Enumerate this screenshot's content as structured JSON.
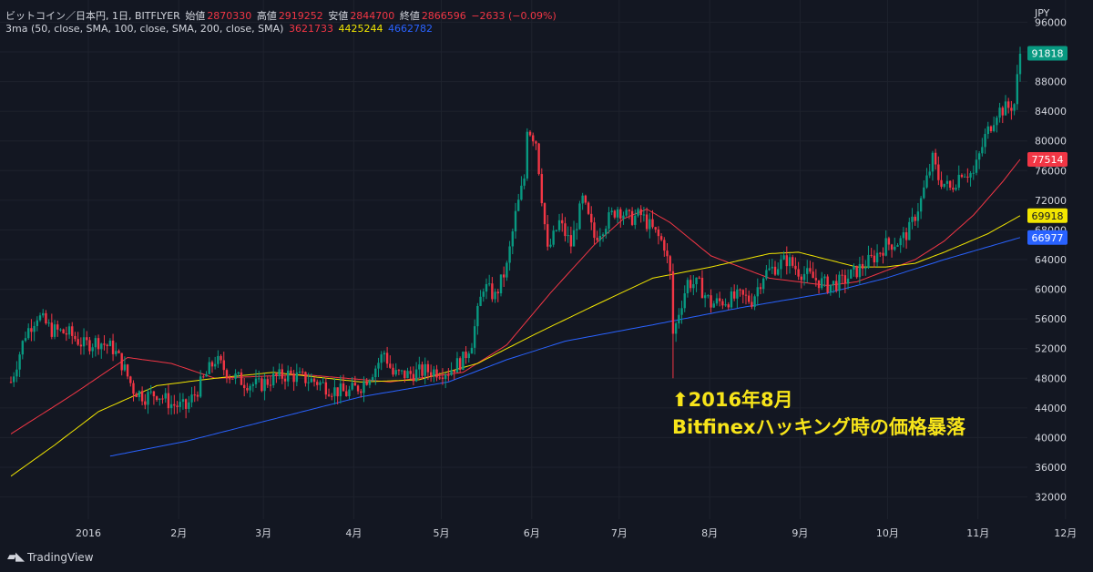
{
  "header": {
    "symbol": "ビットコイン／日本円, 1日, BITFLYER",
    "open_label": "始値",
    "open": "2870330",
    "high_label": "高値",
    "high": "2919252",
    "low_label": "安値",
    "low": "2844700",
    "close_label": "終値",
    "close": "2866596",
    "change": "−2633 (−0.09%)",
    "ma_label": "3ma (50, close, SMA, 100, close, SMA, 200, close, SMA)",
    "ma1_value": "3621733",
    "ma2_value": "4425244",
    "ma3_value": "4662782"
  },
  "currency": "JPY",
  "annotation": {
    "line1": "2016年8月",
    "line2": "Bitfinexハッキング時の価格暴落"
  },
  "branding": "TradingView",
  "colors": {
    "background": "#131722",
    "grid": "#1e222d",
    "up": "#089981",
    "down": "#f23645",
    "ma50": "#f23645",
    "ma100": "#f2e600",
    "ma200": "#2962ff",
    "annotation": "#f7e41a",
    "axis_text": "#d1d4dc"
  },
  "chart_data": {
    "type": "candlestick",
    "y_ticks": [
      32000,
      36000,
      40000,
      44000,
      48000,
      52000,
      56000,
      60000,
      64000,
      68000,
      72000,
      76000,
      80000,
      84000,
      88000,
      92000,
      96000
    ],
    "ylim": [
      29000,
      99000
    ],
    "x_labels": [
      "2016",
      "2月",
      "3月",
      "4月",
      "5月",
      "6月",
      "7月",
      "8月",
      "9月",
      "10月",
      "11月",
      "12月"
    ],
    "price_labels": [
      {
        "value": 91818,
        "text": "91818",
        "color": "#089981"
      },
      {
        "value": 77514,
        "text": "77514",
        "color": "#f23645"
      },
      {
        "value": 69918,
        "text": "69918",
        "color": "#f2e600"
      },
      {
        "value": 66977,
        "text": "66977",
        "color": "#2962ff"
      }
    ],
    "price_anchors": [
      [
        0,
        47500
      ],
      [
        5,
        54000
      ],
      [
        9,
        56500
      ],
      [
        14,
        54500
      ],
      [
        20,
        54000
      ],
      [
        25,
        52500
      ],
      [
        30,
        53000
      ],
      [
        35,
        52000
      ],
      [
        38,
        50000
      ],
      [
        42,
        46500
      ],
      [
        46,
        45500
      ],
      [
        50,
        46000
      ],
      [
        55,
        44500
      ],
      [
        60,
        44000
      ],
      [
        64,
        46500
      ],
      [
        70,
        50500
      ],
      [
        75,
        48500
      ],
      [
        80,
        47500
      ],
      [
        85,
        47000
      ],
      [
        90,
        48000
      ],
      [
        95,
        48500
      ],
      [
        100,
        48000
      ],
      [
        105,
        47500
      ],
      [
        110,
        46500
      ],
      [
        115,
        46000
      ],
      [
        120,
        47000
      ],
      [
        125,
        49500
      ],
      [
        128,
        51500
      ],
      [
        131,
        48500
      ],
      [
        136,
        48500
      ],
      [
        142,
        49000
      ],
      [
        150,
        49000
      ],
      [
        155,
        50500
      ],
      [
        158,
        53000
      ],
      [
        162,
        60500
      ],
      [
        166,
        59000
      ],
      [
        170,
        63000
      ],
      [
        173,
        70000
      ],
      [
        176,
        75000
      ],
      [
        177,
        82000
      ],
      [
        180,
        80000
      ],
      [
        184,
        65000
      ],
      [
        188,
        69000
      ],
      [
        192,
        66000
      ],
      [
        196,
        72000
      ],
      [
        200,
        67000
      ],
      [
        204,
        69000
      ],
      [
        208,
        71000
      ],
      [
        212,
        69500
      ],
      [
        216,
        70000
      ],
      [
        220,
        68000
      ],
      [
        224,
        66000
      ],
      [
        226,
        62000
      ],
      [
        227,
        53500
      ],
      [
        229,
        57000
      ],
      [
        232,
        61000
      ],
      [
        236,
        60500
      ],
      [
        240,
        58000
      ],
      [
        245,
        58500
      ],
      [
        250,
        59000
      ],
      [
        254,
        58500
      ],
      [
        258,
        62000
      ],
      [
        262,
        63000
      ],
      [
        266,
        64000
      ],
      [
        270,
        62500
      ],
      [
        275,
        61500
      ],
      [
        280,
        60500
      ],
      [
        285,
        61000
      ],
      [
        290,
        62500
      ],
      [
        295,
        64000
      ],
      [
        300,
        66000
      ],
      [
        305,
        66500
      ],
      [
        308,
        68000
      ],
      [
        312,
        72000
      ],
      [
        316,
        77500
      ],
      [
        318,
        75000
      ],
      [
        322,
        73500
      ],
      [
        326,
        76000
      ],
      [
        330,
        75500
      ],
      [
        334,
        80500
      ],
      [
        338,
        84000
      ],
      [
        342,
        84500
      ],
      [
        344,
        85000
      ],
      [
        346,
        91800
      ]
    ],
    "ma_anchors": {
      "ma50": [
        [
          0,
          40500
        ],
        [
          20,
          45500
        ],
        [
          40,
          50800
        ],
        [
          55,
          50000
        ],
        [
          70,
          48000
        ],
        [
          100,
          48500
        ],
        [
          130,
          47500
        ],
        [
          155,
          48800
        ],
        [
          170,
          52500
        ],
        [
          185,
          59500
        ],
        [
          200,
          66000
        ],
        [
          210,
          69500
        ],
        [
          218,
          70800
        ],
        [
          226,
          69000
        ],
        [
          240,
          64500
        ],
        [
          260,
          61500
        ],
        [
          280,
          60500
        ],
        [
          290,
          61000
        ],
        [
          300,
          62500
        ],
        [
          310,
          64000
        ],
        [
          320,
          66500
        ],
        [
          330,
          70000
        ],
        [
          340,
          74500
        ],
        [
          346,
          77514
        ]
      ],
      "ma100": [
        [
          0,
          34800
        ],
        [
          15,
          39000
        ],
        [
          30,
          43500
        ],
        [
          50,
          47000
        ],
        [
          70,
          48000
        ],
        [
          90,
          48800
        ],
        [
          120,
          47500
        ],
        [
          140,
          47800
        ],
        [
          160,
          50000
        ],
        [
          180,
          54000
        ],
        [
          200,
          57800
        ],
        [
          220,
          61500
        ],
        [
          240,
          63000
        ],
        [
          260,
          64800
        ],
        [
          270,
          65000
        ],
        [
          280,
          64000
        ],
        [
          290,
          63000
        ],
        [
          300,
          63000
        ],
        [
          310,
          63500
        ],
        [
          320,
          65000
        ],
        [
          335,
          67500
        ],
        [
          346,
          69918
        ]
      ],
      "ma200": [
        [
          34,
          37500
        ],
        [
          60,
          39500
        ],
        [
          90,
          42500
        ],
        [
          120,
          45500
        ],
        [
          150,
          47500
        ],
        [
          170,
          50500
        ],
        [
          190,
          53000
        ],
        [
          220,
          55200
        ],
        [
          250,
          57500
        ],
        [
          280,
          59500
        ],
        [
          300,
          61500
        ],
        [
          320,
          64000
        ],
        [
          346,
          66977
        ]
      ]
    }
  }
}
